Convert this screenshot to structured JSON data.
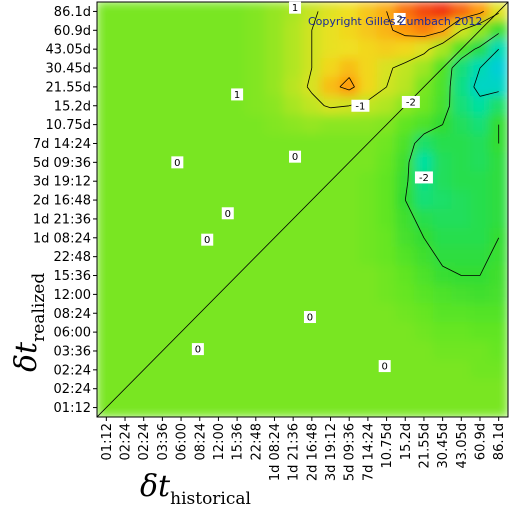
{
  "chart_data": {
    "type": "heatmap",
    "copyright": "Copyright Gilles Zumbach 2012",
    "xlabel": {
      "main": "δt",
      "sub": "historical"
    },
    "ylabel": {
      "main": "δt",
      "sub": "realized"
    },
    "x_ticks": [
      "01:12",
      "02:24",
      "02:24",
      "03:36",
      "06:00",
      "08:24",
      "12:00",
      "15:36",
      "22:48",
      "1d 08:24",
      "1d 21:36",
      "2d 16:48",
      "3d 19:12",
      "5d 09:36",
      "7d 14:24",
      "10.75d",
      "15.2d",
      "21.55d",
      "30.45d",
      "43.05d",
      "60.9d",
      "86.1d"
    ],
    "y_ticks": [
      "86.1d",
      "60.9d",
      "43.05d",
      "30.45d",
      "21.55d",
      "15.2d",
      "10.75d",
      "7d 14:24",
      "5d 09:36",
      "3d 19:12",
      "2d 16:48",
      "1d 21:36",
      "1d 08:24",
      "22:48",
      "15:36",
      "12:00",
      "08:24",
      "06:00",
      "03:36",
      "02:24",
      "02:24",
      "01:12"
    ],
    "contour_labels": [
      "1",
      "2",
      "1",
      "-1",
      "-2",
      "-2",
      "0",
      "0",
      "0",
      "0",
      "0",
      "0",
      "0"
    ],
    "colormap": [
      "#00c8e8",
      "#00e0a0",
      "#33dd33",
      "#66e622",
      "#b0e620",
      "#f0e020",
      "#ff9a10",
      "#f03010"
    ],
    "values": [
      [
        0,
        0,
        0,
        0,
        0,
        0,
        0,
        0,
        0.1,
        0.3,
        0.5,
        0.9,
        1.2,
        1.4,
        1.7,
        2.0,
        2.5,
        2.8,
        3.0,
        2.6,
        2.2,
        1.2
      ],
      [
        0,
        0,
        0,
        0,
        0,
        0,
        0,
        0,
        0.1,
        0.3,
        0.6,
        1.0,
        1.3,
        1.5,
        1.7,
        1.9,
        2.2,
        2.4,
        2.1,
        1.0,
        0.3,
        -0.8
      ],
      [
        0,
        0,
        0,
        0,
        0,
        0,
        0,
        0,
        0.1,
        0.3,
        0.6,
        1.0,
        1.3,
        1.4,
        1.5,
        1.6,
        1.5,
        1.2,
        0.5,
        -0.5,
        -1.2,
        -2.0
      ],
      [
        0,
        0,
        0,
        0,
        0,
        0,
        0,
        0,
        0.1,
        0.3,
        0.6,
        1.0,
        1.5,
        1.8,
        1.5,
        1.1,
        0.8,
        0.4,
        -0.5,
        -1.5,
        -2.0,
        -2.4
      ],
      [
        0,
        0,
        0,
        0,
        0,
        0,
        0,
        0,
        0.1,
        0.3,
        0.7,
        1.1,
        1.8,
        2.2,
        1.5,
        1.0,
        0.7,
        0.0,
        -0.6,
        -1.6,
        -2.2,
        -2.2
      ],
      [
        0,
        0,
        0,
        0,
        0,
        0,
        0,
        0,
        0.1,
        0.2,
        0.5,
        0.8,
        1.1,
        1.0,
        0.8,
        0.6,
        0.2,
        -0.1,
        -0.7,
        -1.5,
        -1.8,
        -1.4
      ],
      [
        0,
        0,
        0,
        0,
        0,
        0,
        0,
        0,
        0,
        0.1,
        0.2,
        0.3,
        0.2,
        0.2,
        0.2,
        0.1,
        -0.3,
        -0.6,
        -1.0,
        -1.3,
        -1.5,
        -1.0
      ],
      [
        0,
        0,
        0,
        0,
        0,
        0,
        0,
        0,
        0,
        0,
        0,
        0,
        0,
        0,
        0,
        -0.1,
        -0.6,
        -1.4,
        -1.2,
        -1.2,
        -1.3,
        -1.0
      ],
      [
        0,
        0,
        0,
        0,
        0,
        0,
        0,
        0,
        0,
        0,
        0,
        0,
        0,
        0,
        0,
        -0.2,
        -0.8,
        -1.8,
        -1.3,
        -1.2,
        -1.3,
        -1.1
      ],
      [
        0,
        0,
        0,
        0,
        0,
        0,
        0,
        0,
        0,
        0,
        0,
        0,
        0,
        0,
        -0.1,
        -0.3,
        -0.9,
        -1.6,
        -1.3,
        -1.2,
        -1.2,
        -1.1
      ],
      [
        0,
        0,
        0,
        0,
        0,
        0,
        0,
        0,
        0,
        0,
        0,
        0,
        0,
        0,
        -0.1,
        -0.3,
        -1.0,
        -1.5,
        -1.4,
        -1.3,
        -1.2,
        -1.1
      ],
      [
        0,
        0,
        0,
        0,
        0,
        0,
        0,
        0,
        0,
        0,
        0,
        0,
        0,
        0,
        -0.1,
        -0.3,
        -0.8,
        -1.2,
        -1.3,
        -1.3,
        -1.2,
        -1.1
      ],
      [
        0,
        0,
        0,
        0,
        0,
        0,
        0,
        0,
        0,
        0,
        0,
        0,
        0,
        0,
        -0.1,
        -0.2,
        -0.7,
        -1.0,
        -1.2,
        -1.2,
        -1.2,
        -1.0
      ],
      [
        0,
        0,
        0,
        0,
        0,
        0,
        0,
        0,
        0,
        0,
        0,
        0,
        0,
        0,
        -0.1,
        -0.2,
        -0.5,
        -0.8,
        -1.1,
        -1.1,
        -1.1,
        -0.9
      ],
      [
        0,
        0,
        0,
        0,
        0,
        0,
        0,
        0,
        0,
        0,
        0,
        0,
        0,
        0,
        0,
        -0.1,
        -0.3,
        -0.6,
        -0.9,
        -1.0,
        -1.0,
        -0.8
      ],
      [
        0,
        0,
        0,
        0,
        0,
        0,
        0,
        0,
        0,
        0,
        0,
        0,
        0,
        0,
        0,
        -0.1,
        -0.2,
        -0.4,
        -0.6,
        -0.7,
        -0.8,
        -0.7
      ],
      [
        0,
        0,
        0,
        0,
        0,
        0,
        0,
        0,
        0,
        0,
        0,
        0,
        0,
        0,
        0,
        0,
        -0.1,
        -0.2,
        -0.4,
        -0.4,
        -0.5,
        -0.5
      ],
      [
        0,
        0,
        0,
        0,
        0,
        0,
        0,
        0,
        0,
        0,
        0,
        0,
        0,
        0,
        0,
        0,
        0,
        -0.1,
        -0.2,
        -0.2,
        -0.3,
        -0.3
      ],
      [
        0,
        0,
        0,
        0,
        0,
        0,
        0,
        0,
        0,
        0,
        0,
        0,
        0,
        0,
        0,
        0,
        0,
        0,
        -0.1,
        -0.1,
        -0.1,
        -0.2
      ],
      [
        0,
        0,
        0,
        0,
        0,
        0,
        0,
        0,
        0,
        0,
        0,
        0,
        0,
        0,
        0,
        0,
        0,
        0,
        0,
        0,
        -0.1,
        -0.1
      ],
      [
        0,
        0,
        0,
        0,
        0,
        0,
        0,
        0,
        0,
        0,
        0,
        0,
        0,
        0,
        0,
        0,
        0,
        0,
        0,
        0,
        0,
        0
      ],
      [
        0,
        0,
        0,
        0,
        0,
        0,
        0,
        0,
        0,
        0,
        0,
        0,
        0,
        0,
        0,
        0,
        0,
        0,
        0,
        0,
        0,
        0
      ]
    ]
  }
}
